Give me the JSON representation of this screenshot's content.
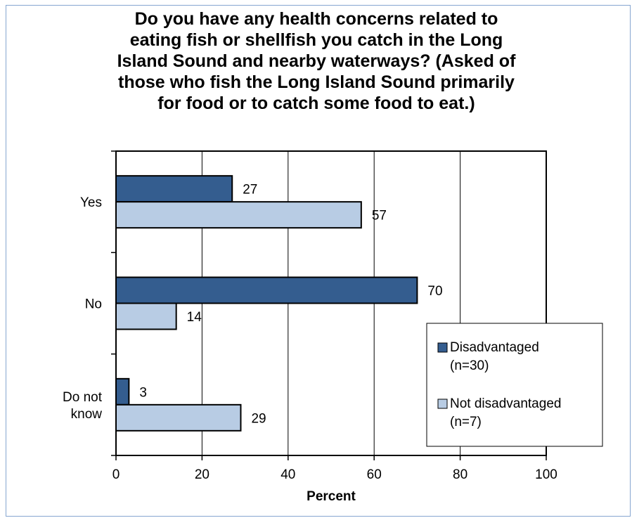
{
  "chart_data": {
    "type": "bar",
    "orientation": "horizontal",
    "title_lines": [
      "Do you have any health concerns related to",
      "eating fish or shellfish you catch in the Long",
      "Island Sound and nearby waterways? (Asked of",
      "those who fish the Long Island Sound primarily",
      "for food or to catch some food to eat.)"
    ],
    "categories": [
      {
        "lines": [
          "Yes"
        ]
      },
      {
        "lines": [
          "No"
        ]
      },
      {
        "lines": [
          "Do not",
          "know"
        ]
      }
    ],
    "series": [
      {
        "name_lines": [
          "Disadvantaged",
          "(n=30)"
        ],
        "color": "#345d8f",
        "values": [
          27,
          70,
          3
        ]
      },
      {
        "name_lines": [
          "Not disadvantaged",
          "(n=7)"
        ],
        "color": "#b8cce4",
        "values": [
          57,
          14,
          29
        ]
      }
    ],
    "data_labels": [
      [
        "27",
        "70",
        "3"
      ],
      [
        "57",
        "14",
        "29"
      ]
    ],
    "xlabel": "Percent",
    "xlim": [
      0,
      100
    ],
    "xticks": [
      0,
      20,
      40,
      60,
      80,
      100
    ],
    "grid": "vertical",
    "legend_position": "bottom-right"
  }
}
